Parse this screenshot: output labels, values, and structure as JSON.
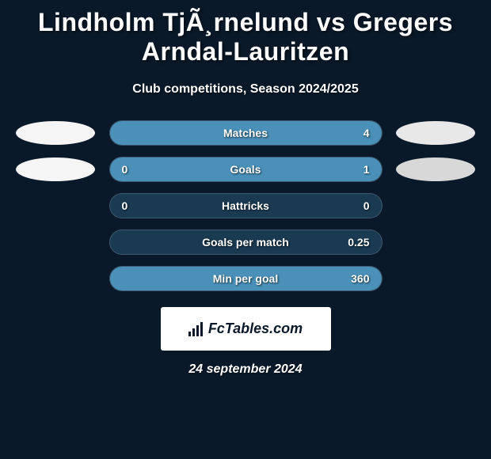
{
  "title": "Lindholm TjÃ¸rnelund vs Gregers Arndal-Lauritzen",
  "subtitle": "Club competitions, Season 2024/2025",
  "date": "24 september 2024",
  "logo_text": "FcTables.com",
  "colors": {
    "background": "#0a1929",
    "avatar_left_row1": "#f5f5f5",
    "avatar_left_row2": "#f5f5f5",
    "avatar_right_row1": "#e8e8e8",
    "avatar_right_row2": "#d8d8d8",
    "bar_bg": "#1a3a52",
    "fill_right_1": "#4a90b8",
    "fill_right_2": "#4a90b8",
    "fill_right_5": "#4a90b8"
  },
  "stats": [
    {
      "label": "Matches",
      "left_value": "",
      "right_value": "4",
      "left_width": 0,
      "right_width": 100,
      "show_avatars": true
    },
    {
      "label": "Goals",
      "left_value": "0",
      "right_value": "1",
      "left_width": 0,
      "right_width": 100,
      "show_avatars": true
    },
    {
      "label": "Hattricks",
      "left_value": "0",
      "right_value": "0",
      "left_width": 0,
      "right_width": 0,
      "show_avatars": false
    },
    {
      "label": "Goals per match",
      "left_value": "",
      "right_value": "0.25",
      "left_width": 0,
      "right_width": 0,
      "show_avatars": false
    },
    {
      "label": "Min per goal",
      "left_value": "",
      "right_value": "360",
      "left_width": 0,
      "right_width": 100,
      "show_avatars": false
    }
  ]
}
